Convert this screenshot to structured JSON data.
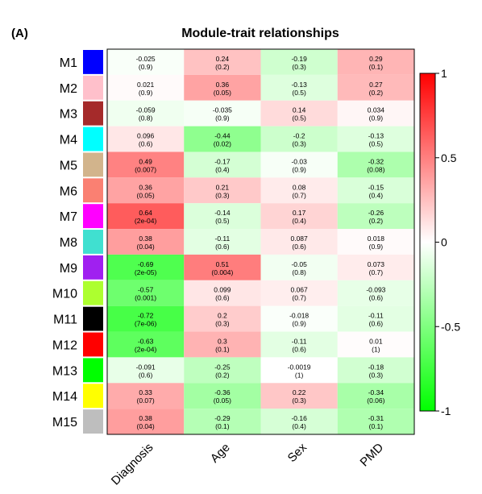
{
  "panel_label": "(A)",
  "chart_data": {
    "type": "heatmap",
    "title": "Module-trait relationships",
    "columns": [
      "Diagnosis",
      "Age",
      "Sex",
      "PMD"
    ],
    "rows": [
      {
        "name": "M1",
        "color": "#0000ff",
        "cells": [
          {
            "r": "-0.025",
            "p": "(0.9)"
          },
          {
            "r": "0.24",
            "p": "(0.2)"
          },
          {
            "r": "-0.19",
            "p": "(0.3)"
          },
          {
            "r": "0.29",
            "p": "(0.1)"
          }
        ]
      },
      {
        "name": "M2",
        "color": "#ffc0cb",
        "cells": [
          {
            "r": "0.021",
            "p": "(0.9)"
          },
          {
            "r": "0.36",
            "p": "(0.05)"
          },
          {
            "r": "-0.13",
            "p": "(0.5)"
          },
          {
            "r": "0.27",
            "p": "(0.2)"
          }
        ]
      },
      {
        "name": "M3",
        "color": "#a52a2a",
        "cells": [
          {
            "r": "-0.059",
            "p": "(0.8)"
          },
          {
            "r": "-0.035",
            "p": "(0.9)"
          },
          {
            "r": "0.14",
            "p": "(0.5)"
          },
          {
            "r": "0.034",
            "p": "(0.9)"
          }
        ]
      },
      {
        "name": "M4",
        "color": "#00ffff",
        "cells": [
          {
            "r": "0.096",
            "p": "(0.6)"
          },
          {
            "r": "-0.44",
            "p": "(0.02)"
          },
          {
            "r": "-0.2",
            "p": "(0.3)"
          },
          {
            "r": "-0.13",
            "p": "(0.5)"
          }
        ]
      },
      {
        "name": "M5",
        "color": "#d2b48c",
        "cells": [
          {
            "r": "0.49",
            "p": "(0.007)"
          },
          {
            "r": "-0.17",
            "p": "(0.4)"
          },
          {
            "r": "-0.03",
            "p": "(0.9)"
          },
          {
            "r": "-0.32",
            "p": "(0.08)"
          }
        ]
      },
      {
        "name": "M6",
        "color": "#fa8072",
        "cells": [
          {
            "r": "0.36",
            "p": "(0.05)"
          },
          {
            "r": "0.21",
            "p": "(0.3)"
          },
          {
            "r": "0.08",
            "p": "(0.7)"
          },
          {
            "r": "-0.15",
            "p": "(0.4)"
          }
        ]
      },
      {
        "name": "M7",
        "color": "#ff00ff",
        "cells": [
          {
            "r": "0.64",
            "p": "(2e-04)"
          },
          {
            "r": "-0.14",
            "p": "(0.5)"
          },
          {
            "r": "0.17",
            "p": "(0.4)"
          },
          {
            "r": "-0.26",
            "p": "(0.2)"
          }
        ]
      },
      {
        "name": "M8",
        "color": "#40e0d0",
        "cells": [
          {
            "r": "0.38",
            "p": "(0.04)"
          },
          {
            "r": "-0.11",
            "p": "(0.6)"
          },
          {
            "r": "0.087",
            "p": "(0.6)"
          },
          {
            "r": "0.018",
            "p": "(0.9)"
          }
        ]
      },
      {
        "name": "M9",
        "color": "#a020f0",
        "cells": [
          {
            "r": "-0.69",
            "p": "(2e-05)"
          },
          {
            "r": "0.51",
            "p": "(0.004)"
          },
          {
            "r": "-0.05",
            "p": "(0.8)"
          },
          {
            "r": "0.073",
            "p": "(0.7)"
          }
        ]
      },
      {
        "name": "M10",
        "color": "#adff2f",
        "cells": [
          {
            "r": "-0.57",
            "p": "(0.001)"
          },
          {
            "r": "0.099",
            "p": "(0.6)"
          },
          {
            "r": "0.067",
            "p": "(0.7)"
          },
          {
            "r": "-0.093",
            "p": "(0.6)"
          }
        ]
      },
      {
        "name": "M11",
        "color": "#000000",
        "cells": [
          {
            "r": "-0.72",
            "p": "(7e-06)"
          },
          {
            "r": "0.2",
            "p": "(0.3)"
          },
          {
            "r": "-0.018",
            "p": "(0.9)"
          },
          {
            "r": "-0.11",
            "p": "(0.6)"
          }
        ]
      },
      {
        "name": "M12",
        "color": "#ff0000",
        "cells": [
          {
            "r": "-0.63",
            "p": "(2e-04)"
          },
          {
            "r": "0.3",
            "p": "(0.1)"
          },
          {
            "r": "-0.11",
            "p": "(0.6)"
          },
          {
            "r": "0.01",
            "p": "(1)"
          }
        ]
      },
      {
        "name": "M13",
        "color": "#00ff00",
        "cells": [
          {
            "r": "-0.091",
            "p": "(0.6)"
          },
          {
            "r": "-0.25",
            "p": "(0.2)"
          },
          {
            "r": "-0.0019",
            "p": "(1)"
          },
          {
            "r": "-0.18",
            "p": "(0.3)"
          }
        ]
      },
      {
        "name": "M14",
        "color": "#ffff00",
        "cells": [
          {
            "r": "0.33",
            "p": "(0.07)"
          },
          {
            "r": "-0.36",
            "p": "(0.05)"
          },
          {
            "r": "0.22",
            "p": "(0.3)"
          },
          {
            "r": "-0.34",
            "p": "(0.06)"
          }
        ]
      },
      {
        "name": "M15",
        "color": "#bebebe",
        "cells": [
          {
            "r": "0.38",
            "p": "(0.04)"
          },
          {
            "r": "-0.29",
            "p": "(0.1)"
          },
          {
            "r": "-0.16",
            "p": "(0.4)"
          },
          {
            "r": "-0.31",
            "p": "(0.1)"
          }
        ]
      }
    ],
    "color_scale": {
      "min": -1,
      "max": 1,
      "low_color": "#00ff00",
      "mid_color": "#ffffff",
      "high_color": "#ff0000",
      "ticks": [
        1,
        0.5,
        0,
        -0.5,
        -1
      ],
      "tick_labels": [
        "1",
        "0.5",
        "0",
        "-0.5",
        "-1"
      ]
    }
  }
}
